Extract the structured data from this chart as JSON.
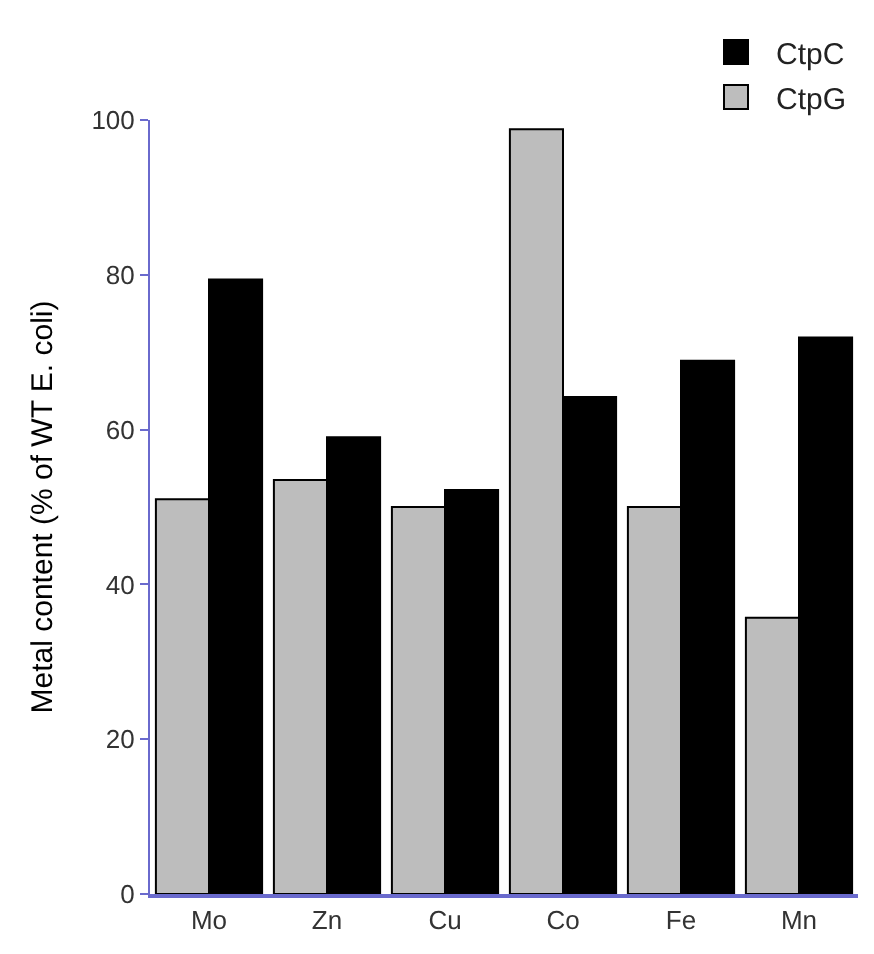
{
  "chart_data": {
    "type": "bar",
    "ylabel": "Metal content (% of WT E. coli)",
    "categories": [
      "Mo",
      "Zn",
      "Cu",
      "Co",
      "Fe",
      "Mn"
    ],
    "series": [
      {
        "name": "CtpG",
        "color": "#bdbdbd",
        "values": [
          51,
          53.5,
          50,
          98.8,
          50,
          35.7
        ]
      },
      {
        "name": "CtpC",
        "color": "#000000",
        "values": [
          79.4,
          59,
          52.2,
          64.2,
          68.9,
          71.9
        ]
      }
    ],
    "ylim": [
      0,
      100
    ],
    "yticks": [
      0,
      20,
      40,
      60,
      80,
      100
    ],
    "legend": "top right"
  }
}
